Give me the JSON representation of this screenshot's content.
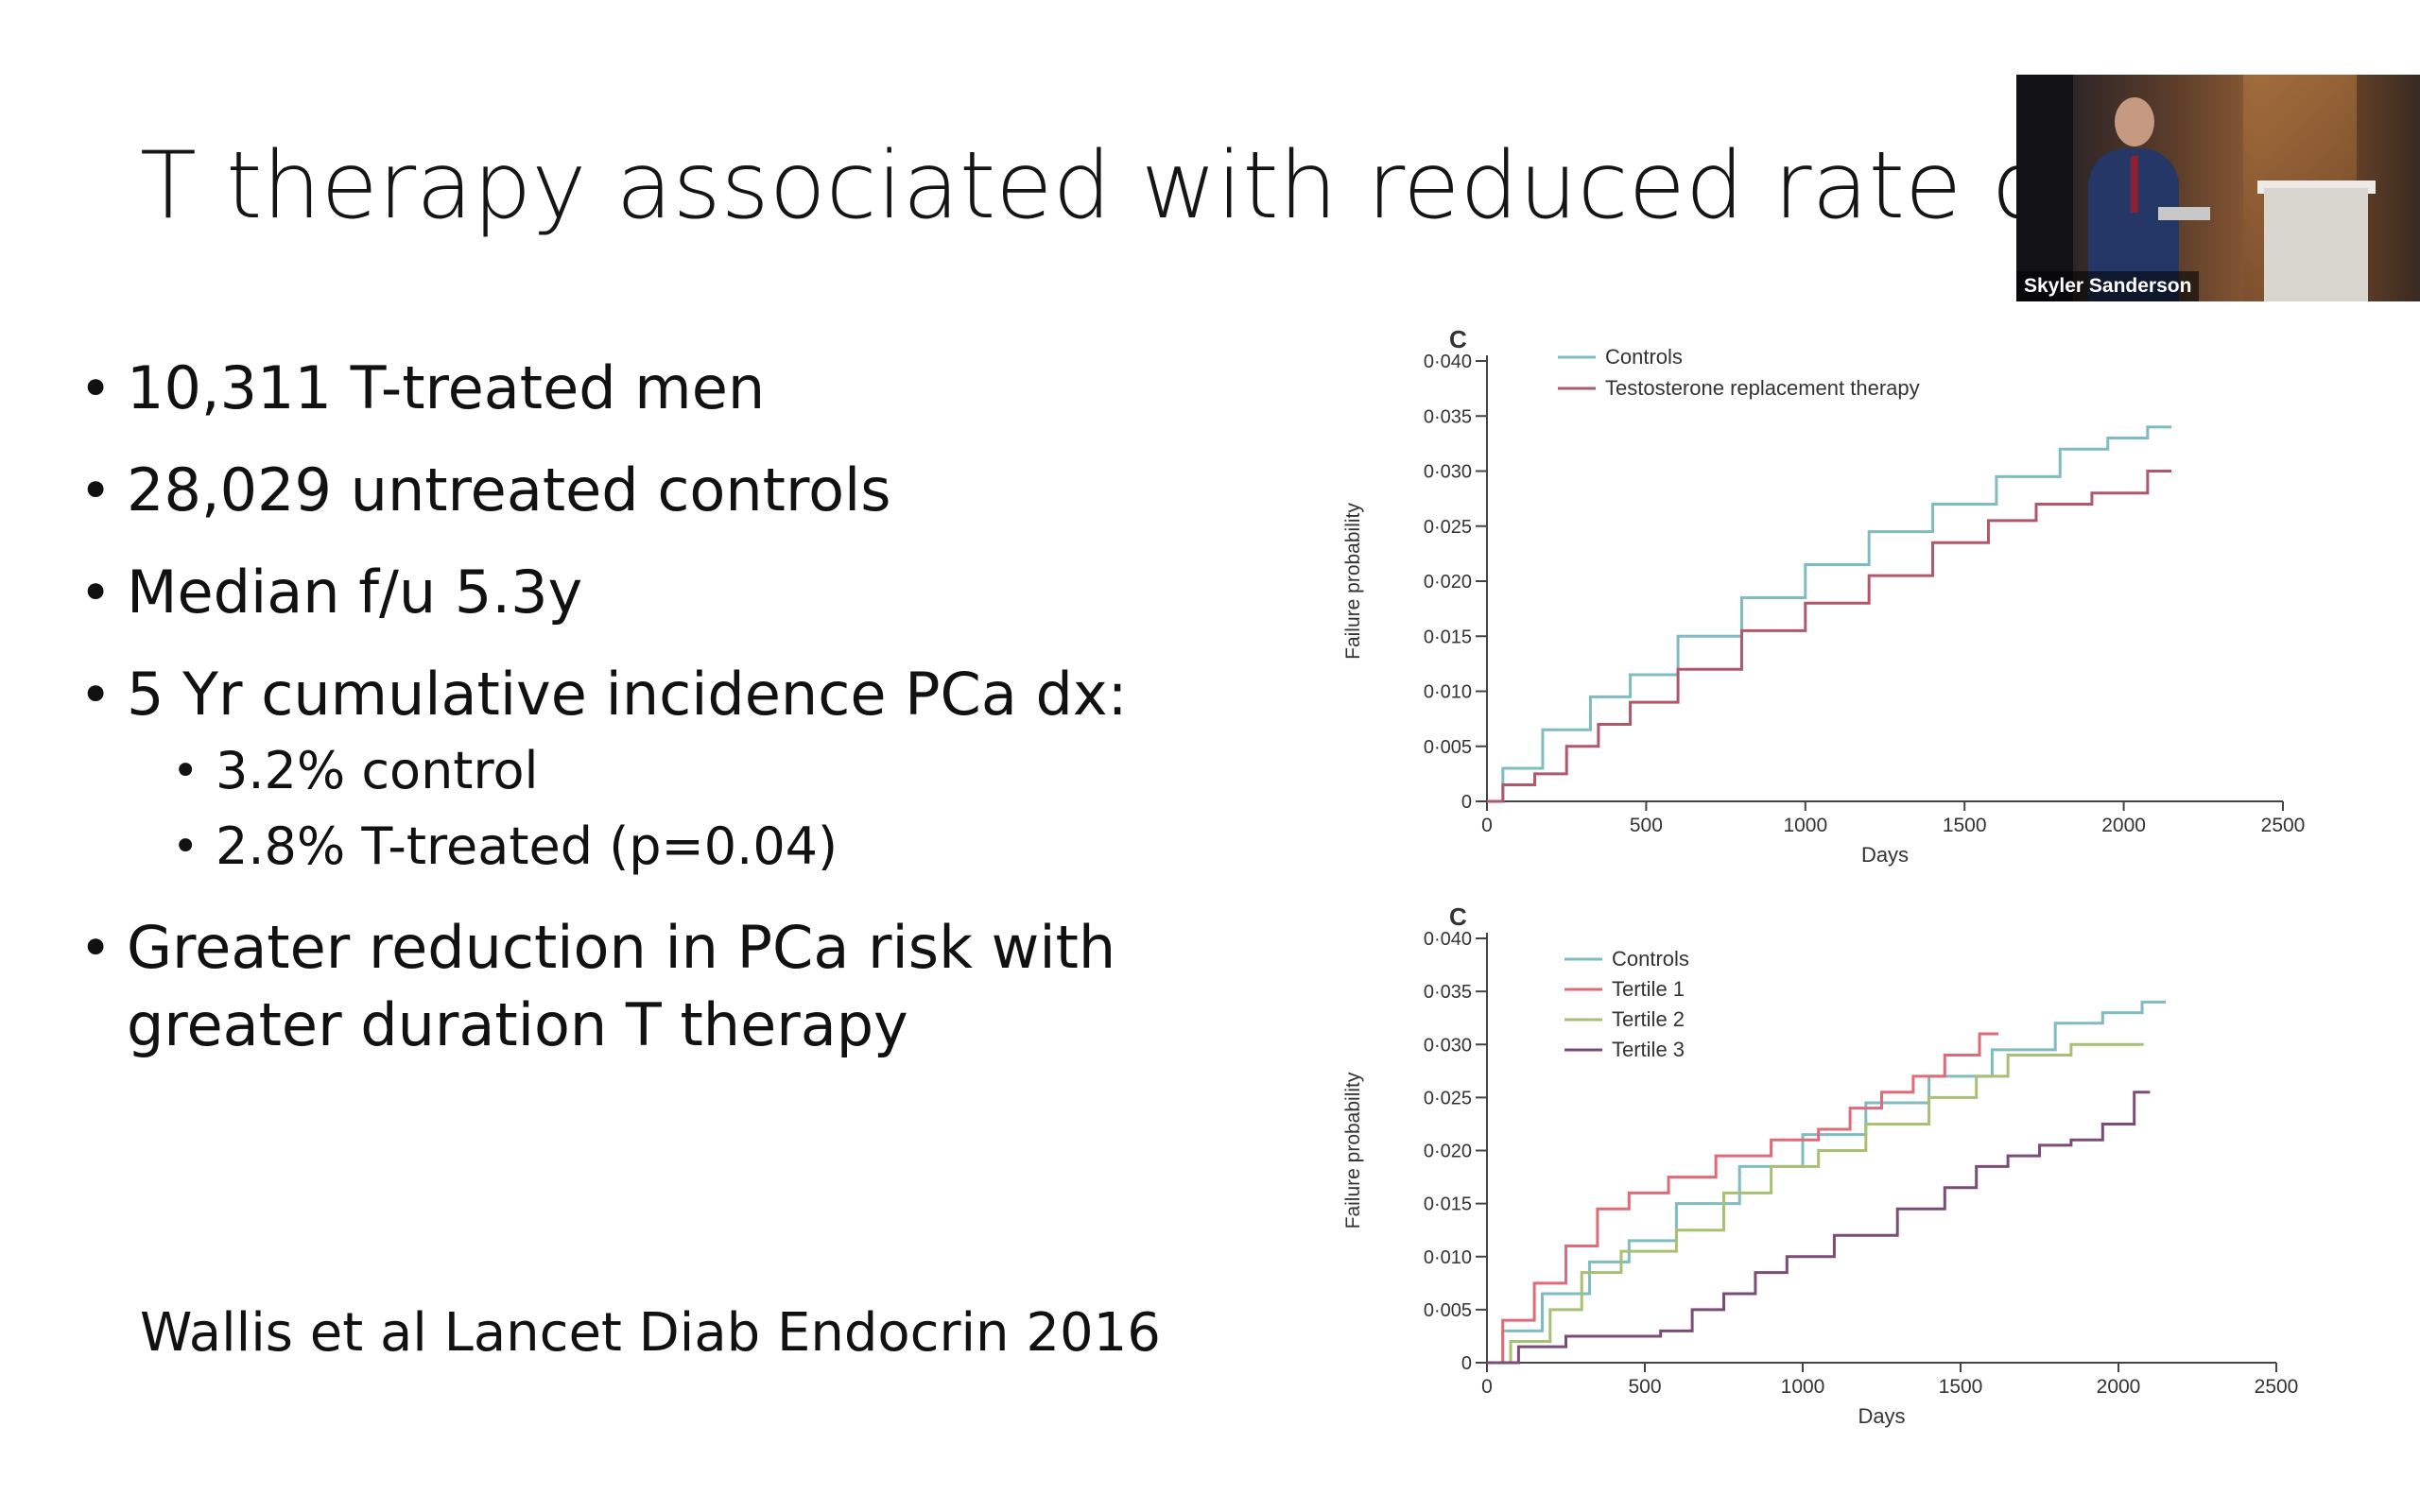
{
  "slide": {
    "title": "T therapy associated with reduced rate of PCa",
    "bullets": [
      "10,311 T-treated men",
      "28,029 untreated controls",
      "Median f/u 5.3y",
      "5 Yr cumulative incidence PCa dx:"
    ],
    "sub_bullets": [
      "3.2% control",
      "2.8% T-treated  (p=0.04)"
    ],
    "last_bullet_lines": [
      "Greater reduction in PCa risk with",
      "greater duration T therapy"
    ],
    "citation": "Wallis et al Lancet Diab Endocrin 2016"
  },
  "video": {
    "speaker_name": "Skyler Sanderson"
  },
  "chart_data": [
    {
      "type": "line",
      "panel_label": "C",
      "xlabel": "Days",
      "ylabel": "Failure probability",
      "xlim": [
        0,
        2500
      ],
      "ylim": [
        0,
        0.04
      ],
      "xticks": [
        0,
        500,
        1000,
        1500,
        2000,
        2500
      ],
      "xtick_labels": [
        "0",
        "500",
        "1000",
        "1500",
        "2000",
        "2500"
      ],
      "yticks": [
        0,
        0.005,
        0.01,
        0.015,
        0.02,
        0.025,
        0.03,
        0.035,
        0.04
      ],
      "ytick_labels": [
        "0",
        "0·005",
        "0·010",
        "0·015",
        "0·020",
        "0·025",
        "0·030",
        "0·035",
        "0·040"
      ],
      "series": [
        {
          "name": "Controls",
          "color": "#7fbcc0",
          "x": [
            0,
            100,
            250,
            400,
            500,
            700,
            900,
            1100,
            1300,
            1500,
            1700,
            1900,
            2000,
            2150
          ],
          "y": [
            0,
            0.003,
            0.0065,
            0.0095,
            0.0115,
            0.015,
            0.0185,
            0.0215,
            0.0245,
            0.027,
            0.0295,
            0.032,
            0.033,
            0.034
          ]
        },
        {
          "name": "Testosterone replacement therapy",
          "color": "#b2576b",
          "x": [
            0,
            100,
            200,
            300,
            400,
            500,
            700,
            900,
            1100,
            1300,
            1500,
            1650,
            1800,
            2000,
            2150
          ],
          "y": [
            0,
            0.0015,
            0.0025,
            0.005,
            0.007,
            0.009,
            0.012,
            0.0155,
            0.018,
            0.0205,
            0.0235,
            0.0255,
            0.027,
            0.028,
            0.03
          ]
        }
      ]
    },
    {
      "type": "line",
      "panel_label": "C",
      "xlabel": "Days",
      "ylabel": "Failure probability",
      "xlim": [
        0,
        2500
      ],
      "ylim": [
        0,
        0.04
      ],
      "xticks": [
        0,
        500,
        1000,
        1500,
        2000,
        2500
      ],
      "xtick_labels": [
        "0",
        "500",
        "1000",
        "1500",
        "2000",
        "2500"
      ],
      "yticks": [
        0,
        0.005,
        0.01,
        0.015,
        0.02,
        0.025,
        0.03,
        0.035,
        0.04
      ],
      "ytick_labels": [
        "0",
        "0·005",
        "0·010",
        "0·015",
        "0·020",
        "0·025",
        "0·030",
        "0·035",
        "0·040"
      ],
      "series": [
        {
          "name": "Controls",
          "color": "#7fbcc0",
          "x": [
            0,
            100,
            250,
            400,
            500,
            700,
            900,
            1100,
            1300,
            1500,
            1700,
            1900,
            2000,
            2150
          ],
          "y": [
            0,
            0.003,
            0.0065,
            0.0095,
            0.0115,
            0.015,
            0.0185,
            0.0215,
            0.0245,
            0.027,
            0.0295,
            0.032,
            0.033,
            0.034
          ]
        },
        {
          "name": "Tertile 1",
          "color": "#e06a78",
          "x": [
            0,
            100,
            200,
            300,
            400,
            500,
            650,
            800,
            1000,
            1100,
            1200,
            1300,
            1400,
            1500,
            1620
          ],
          "y": [
            0,
            0.004,
            0.0075,
            0.011,
            0.0145,
            0.016,
            0.0175,
            0.0195,
            0.021,
            0.022,
            0.024,
            0.0255,
            0.027,
            0.029,
            0.031
          ]
        },
        {
          "name": "Tertile 2",
          "color": "#a8bf74",
          "x": [
            0,
            150,
            250,
            350,
            500,
            700,
            800,
            1000,
            1100,
            1300,
            1500,
            1600,
            1700,
            1800,
            1900,
            2000,
            2080
          ],
          "y": [
            0,
            0.002,
            0.005,
            0.0085,
            0.0105,
            0.0125,
            0.016,
            0.0185,
            0.02,
            0.0225,
            0.025,
            0.027,
            0.029,
            0.029,
            0.03,
            0.03,
            0.03
          ]
        },
        {
          "name": "Tertile 3",
          "color": "#7b4c76",
          "x": [
            0,
            200,
            300,
            400,
            500,
            600,
            700,
            800,
            900,
            1000,
            1200,
            1400,
            1500,
            1600,
            1700,
            1800,
            1900,
            2000,
            2100
          ],
          "y": [
            0,
            0.0015,
            0.0025,
            0.0025,
            0.0025,
            0.003,
            0.005,
            0.0065,
            0.0085,
            0.01,
            0.012,
            0.0145,
            0.0165,
            0.0185,
            0.0195,
            0.0205,
            0.021,
            0.0225,
            0.0255
          ]
        }
      ]
    }
  ]
}
